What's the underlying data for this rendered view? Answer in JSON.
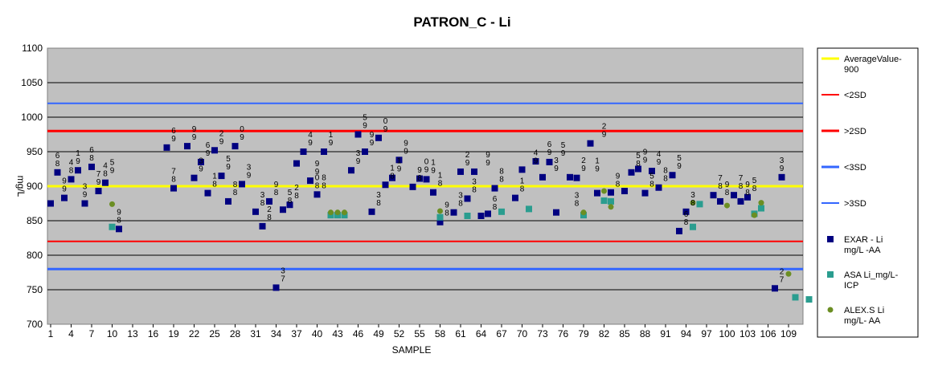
{
  "chart_data": {
    "type": "scatter",
    "title": "PATRON_C - Li",
    "xlabel": "SAMPLE",
    "ylabel": "mg/L",
    "ylim": [
      700,
      1100
    ],
    "yticks": [
      "700",
      "750",
      "800",
      "850",
      "900",
      "950",
      "1000",
      "1050",
      "1100"
    ],
    "xlim": [
      1,
      111
    ],
    "xticks": [
      "1",
      "4",
      "7",
      "10",
      "13",
      "16",
      "19",
      "22",
      "25",
      "28",
      "31",
      "34",
      "37",
      "40",
      "43",
      "46",
      "49",
      "52",
      "55",
      "58",
      "61",
      "64",
      "67",
      "70",
      "73",
      "76",
      "79",
      "82",
      "85",
      "88",
      "91",
      "94",
      "97",
      "100",
      "103",
      "106",
      "109"
    ],
    "grid": true,
    "legend_position": "right",
    "reference_lines": [
      {
        "name": "AverageValue-900",
        "value": 900,
        "color": "#ffff00"
      },
      {
        "name": "<2SD",
        "value": 820,
        "color": "#ff0000"
      },
      {
        "name": ">2SD",
        "value": 980,
        "color": "#ff0000"
      },
      {
        "name": "<3SD",
        "value": 780,
        "color": "#3366ff"
      },
      {
        "name": ">3SD",
        "value": 1020,
        "color": "#3366ff"
      }
    ],
    "series": [
      {
        "name": "EXAR - Li mg/L -AA",
        "color": "#000080",
        "x": [
          1,
          2,
          3,
          4,
          5,
          6,
          7,
          8,
          9,
          11,
          18,
          19,
          21,
          22,
          23,
          24,
          25,
          26,
          27,
          28,
          29,
          31,
          32,
          33,
          34,
          35,
          36,
          37,
          38,
          39,
          40,
          41,
          45,
          46,
          47,
          48,
          49,
          50,
          51,
          52,
          54,
          55,
          56,
          57,
          58,
          60,
          61,
          62,
          63,
          64,
          65,
          66,
          69,
          70,
          72,
          73,
          74,
          75,
          77,
          78,
          80,
          81,
          83,
          85,
          86,
          87,
          88,
          89,
          90,
          92,
          93,
          94,
          98,
          99,
          101,
          102,
          103,
          107,
          108
        ],
        "y": [
          875,
          920,
          883,
          910,
          923,
          875,
          928,
          893,
          905,
          838,
          956,
          897,
          958,
          912,
          935,
          890,
          952,
          915,
          878,
          958,
          903,
          863,
          842,
          878,
          753,
          866,
          873,
          933,
          950,
          908,
          888,
          950,
          923,
          975,
          950,
          863,
          970,
          902,
          912,
          938,
          899,
          911,
          910,
          891,
          848,
          862,
          921,
          882,
          921,
          857,
          860,
          897,
          883,
          924,
          936,
          913,
          935,
          862,
          913,
          912,
          962,
          890,
          891,
          893,
          920,
          925,
          890,
          922,
          898,
          916,
          835,
          863,
          887,
          878,
          887,
          878,
          884,
          752,
          913
        ]
      },
      {
        "name": "ASA Li_mg/L-ICP",
        "color": "#2a9d8f",
        "x": [
          10,
          42,
          43,
          44,
          58,
          62,
          67,
          71,
          79,
          82,
          83,
          95,
          96,
          104,
          105,
          110,
          112
        ],
        "y": [
          841,
          858,
          858,
          858,
          855,
          857,
          863,
          867,
          858,
          879,
          878,
          841,
          874,
          860,
          868,
          739,
          736
        ]
      },
      {
        "name": "ALEX.S Li mg/L- AA",
        "color": "#6b8e23",
        "x": [
          10,
          42,
          43,
          44,
          58,
          79,
          82,
          83,
          95,
          100,
          104,
          105,
          109
        ],
        "y": [
          874,
          862,
          862,
          862,
          864,
          862,
          893,
          870,
          876,
          872,
          858,
          876,
          773
        ]
      }
    ],
    "data_labels": [
      {
        "x": 2,
        "y": 920,
        "t": "6\n8"
      },
      {
        "x": 3,
        "y": 883,
        "t": "9\n9"
      },
      {
        "x": 4,
        "y": 910,
        "t": "4\n8"
      },
      {
        "x": 5,
        "y": 923,
        "t": "1\n9"
      },
      {
        "x": 6,
        "y": 875,
        "t": "3\n9"
      },
      {
        "x": 7,
        "y": 928,
        "t": "6\n8"
      },
      {
        "x": 8,
        "y": 893,
        "t": "7\n9"
      },
      {
        "x": 9,
        "y": 905,
        "t": "4\n8"
      },
      {
        "x": 10,
        "y": 910,
        "t": "5\n9"
      },
      {
        "x": 11,
        "y": 838,
        "t": "9\n8"
      },
      {
        "x": 19,
        "y": 897,
        "t": "7\n8"
      },
      {
        "x": 19,
        "y": 956,
        "t": "6\n9"
      },
      {
        "x": 22,
        "y": 958,
        "t": "9\n9"
      },
      {
        "x": 23,
        "y": 912,
        "t": "3\n9"
      },
      {
        "x": 24,
        "y": 935,
        "t": "6\n9"
      },
      {
        "x": 25,
        "y": 890,
        "t": "1\n8"
      },
      {
        "x": 26,
        "y": 952,
        "t": "2\n9"
      },
      {
        "x": 27,
        "y": 915,
        "t": "5\n9"
      },
      {
        "x": 28,
        "y": 878,
        "t": "8\n8"
      },
      {
        "x": 29,
        "y": 958,
        "t": "0\n9"
      },
      {
        "x": 30,
        "y": 903,
        "t": "3\n9"
      },
      {
        "x": 32,
        "y": 863,
        "t": "3\n8"
      },
      {
        "x": 33,
        "y": 842,
        "t": "2\n8"
      },
      {
        "x": 34,
        "y": 878,
        "t": "9\n8"
      },
      {
        "x": 35,
        "y": 753,
        "t": "3\n7"
      },
      {
        "x": 36,
        "y": 866,
        "t": "5\n8"
      },
      {
        "x": 37,
        "y": 873,
        "t": "2\n8"
      },
      {
        "x": 39,
        "y": 950,
        "t": "4\n9"
      },
      {
        "x": 40,
        "y": 908,
        "t": "9\n9"
      },
      {
        "x": 40,
        "y": 888,
        "t": "0\n8"
      },
      {
        "x": 42,
        "y": 950,
        "t": "1\n9"
      },
      {
        "x": 41,
        "y": 888,
        "t": "8\n8"
      },
      {
        "x": 46,
        "y": 923,
        "t": "3\n9"
      },
      {
        "x": 47,
        "y": 975,
        "t": "5\n9"
      },
      {
        "x": 48,
        "y": 950,
        "t": "9\n9"
      },
      {
        "x": 49,
        "y": 863,
        "t": "3\n8"
      },
      {
        "x": 50,
        "y": 970,
        "t": "0\n9"
      },
      {
        "x": 51,
        "y": 902,
        "t": "1\n8"
      },
      {
        "x": 52,
        "y": 912,
        "t": "1\n9"
      },
      {
        "x": 53,
        "y": 938,
        "t": "9\n9"
      },
      {
        "x": 55,
        "y": 899,
        "t": "9\n8"
      },
      {
        "x": 56,
        "y": 911,
        "t": "0\n9"
      },
      {
        "x": 57,
        "y": 910,
        "t": "1\n9"
      },
      {
        "x": 58,
        "y": 891,
        "t": "1\n8"
      },
      {
        "x": 59,
        "y": 848,
        "t": "9\n8"
      },
      {
        "x": 61,
        "y": 862,
        "t": "3\n8"
      },
      {
        "x": 62,
        "y": 921,
        "t": "2\n9"
      },
      {
        "x": 63,
        "y": 882,
        "t": "3\n8"
      },
      {
        "x": 65,
        "y": 921,
        "t": "9\n9"
      },
      {
        "x": 66,
        "y": 857,
        "t": "6\n8"
      },
      {
        "x": 67,
        "y": 897,
        "t": "8\n8"
      },
      {
        "x": 70,
        "y": 883,
        "t": "1\n8"
      },
      {
        "x": 72,
        "y": 924,
        "t": "4\n9"
      },
      {
        "x": 74,
        "y": 936,
        "t": "6\n9"
      },
      {
        "x": 75,
        "y": 913,
        "t": "3\n9"
      },
      {
        "x": 76,
        "y": 935,
        "t": "5\n9"
      },
      {
        "x": 78,
        "y": 862,
        "t": "3\n8"
      },
      {
        "x": 79,
        "y": 913,
        "t": "2\n9"
      },
      {
        "x": 81,
        "y": 912,
        "t": "1\n9"
      },
      {
        "x": 82,
        "y": 962,
        "t": "2\n9"
      },
      {
        "x": 84,
        "y": 890,
        "t": "9\n8"
      },
      {
        "x": 87,
        "y": 920,
        "t": "5\n8"
      },
      {
        "x": 88,
        "y": 925,
        "t": "9\n9"
      },
      {
        "x": 89,
        "y": 890,
        "t": "5\n8"
      },
      {
        "x": 90,
        "y": 922,
        "t": "4\n9"
      },
      {
        "x": 91,
        "y": 898,
        "t": "8\n8"
      },
      {
        "x": 93,
        "y": 916,
        "t": "5\n9"
      },
      {
        "x": 94,
        "y": 835,
        "t": "6\n8"
      },
      {
        "x": 95,
        "y": 863,
        "t": "3\n8"
      },
      {
        "x": 99,
        "y": 887,
        "t": "7\n8"
      },
      {
        "x": 100,
        "y": 878,
        "t": "9\n8"
      },
      {
        "x": 102,
        "y": 887,
        "t": "7\n8"
      },
      {
        "x": 103,
        "y": 878,
        "t": "9\n8"
      },
      {
        "x": 104,
        "y": 884,
        "t": "5\n8"
      },
      {
        "x": 108,
        "y": 913,
        "t": "3\n9"
      },
      {
        "x": 108,
        "y": 752,
        "t": "2\n7"
      }
    ]
  }
}
